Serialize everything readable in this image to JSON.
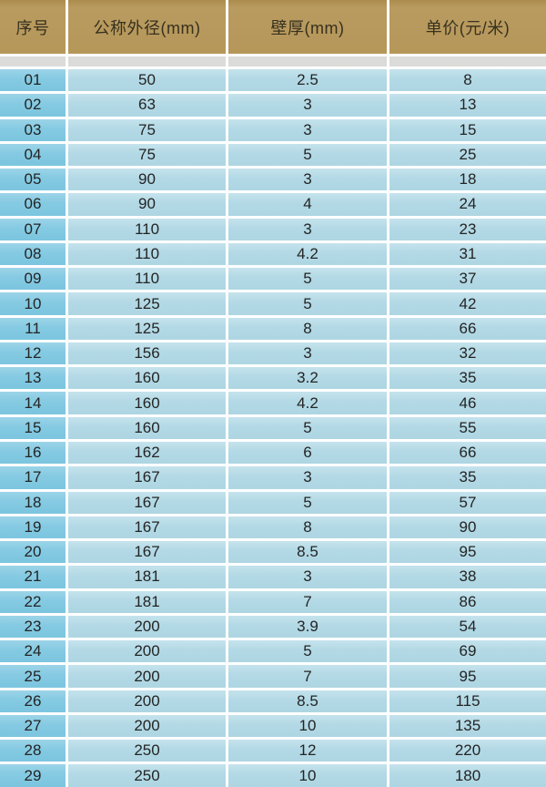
{
  "table": {
    "columns": [
      {
        "id": "serial",
        "label": "序号"
      },
      {
        "id": "diameter",
        "label": "公称外径(mm)"
      },
      {
        "id": "thickness",
        "label": "壁厚(mm)"
      },
      {
        "id": "price",
        "label": "单价(元/米)"
      }
    ],
    "rows": [
      {
        "serial": "01",
        "diameter": "50",
        "thickness": "2.5",
        "price": "8"
      },
      {
        "serial": "02",
        "diameter": "63",
        "thickness": "3",
        "price": "13"
      },
      {
        "serial": "03",
        "diameter": "75",
        "thickness": "3",
        "price": "15"
      },
      {
        "serial": "04",
        "diameter": "75",
        "thickness": "5",
        "price": "25"
      },
      {
        "serial": "05",
        "diameter": "90",
        "thickness": "3",
        "price": "18"
      },
      {
        "serial": "06",
        "diameter": "90",
        "thickness": "4",
        "price": "24"
      },
      {
        "serial": "07",
        "diameter": "110",
        "thickness": "3",
        "price": "23"
      },
      {
        "serial": "08",
        "diameter": "110",
        "thickness": "4.2",
        "price": "31"
      },
      {
        "serial": "09",
        "diameter": "110",
        "thickness": "5",
        "price": "37"
      },
      {
        "serial": "10",
        "diameter": "125",
        "thickness": "5",
        "price": "42"
      },
      {
        "serial": "11",
        "diameter": "125",
        "thickness": "8",
        "price": "66"
      },
      {
        "serial": "12",
        "diameter": "156",
        "thickness": "3",
        "price": "32"
      },
      {
        "serial": "13",
        "diameter": "160",
        "thickness": "3.2",
        "price": "35"
      },
      {
        "serial": "14",
        "diameter": "160",
        "thickness": "4.2",
        "price": "46"
      },
      {
        "serial": "15",
        "diameter": "160",
        "thickness": "5",
        "price": "55"
      },
      {
        "serial": "16",
        "diameter": "162",
        "thickness": "6",
        "price": "66"
      },
      {
        "serial": "17",
        "diameter": "167",
        "thickness": "3",
        "price": "35"
      },
      {
        "serial": "18",
        "diameter": "167",
        "thickness": "5",
        "price": "57"
      },
      {
        "serial": "19",
        "diameter": "167",
        "thickness": "8",
        "price": "90"
      },
      {
        "serial": "20",
        "diameter": "167",
        "thickness": "8.5",
        "price": "95"
      },
      {
        "serial": "21",
        "diameter": "181",
        "thickness": "3",
        "price": "38"
      },
      {
        "serial": "22",
        "diameter": "181",
        "thickness": "7",
        "price": "86"
      },
      {
        "serial": "23",
        "diameter": "200",
        "thickness": "3.9",
        "price": "54"
      },
      {
        "serial": "24",
        "diameter": "200",
        "thickness": "5",
        "price": "69"
      },
      {
        "serial": "25",
        "diameter": "200",
        "thickness": "7",
        "price": "95"
      },
      {
        "serial": "26",
        "diameter": "200",
        "thickness": "8.5",
        "price": "115"
      },
      {
        "serial": "27",
        "diameter": "200",
        "thickness": "10",
        "price": "135"
      },
      {
        "serial": "28",
        "diameter": "250",
        "thickness": "12",
        "price": "220"
      },
      {
        "serial": "29",
        "diameter": "250",
        "thickness": "10",
        "price": "180"
      }
    ]
  },
  "colors": {
    "header_bg": "#b6975a",
    "serial_column_bg": "#84cae2",
    "data_cell_bg": "#b2d9e5",
    "spacer_bg": "#dbdbd9",
    "separator": "#ffffff",
    "header_text": "#37311f",
    "cell_text": "#242424"
  }
}
